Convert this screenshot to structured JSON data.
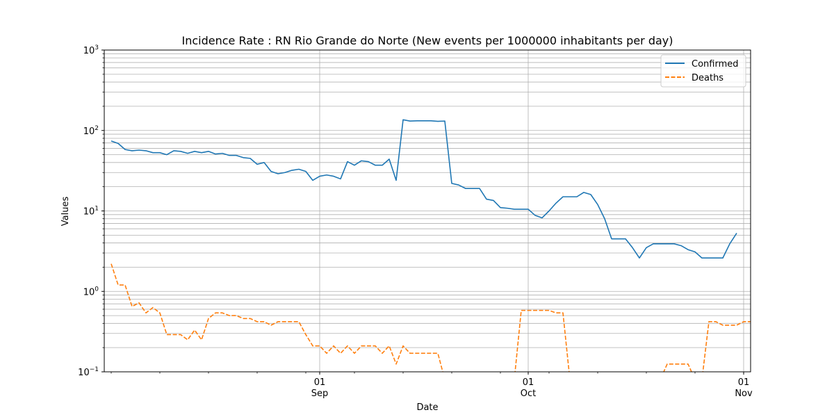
{
  "chart_data": {
    "type": "line",
    "title": "Incidence Rate : RN Rio Grande do Norte (New events per 1000000 inhabitants per day)",
    "xlabel": "Date",
    "ylabel": "Values",
    "yscale": "log",
    "ylim": [
      0.1,
      1000
    ],
    "xlim": [
      "2021-08-01",
      "2021-11-02"
    ],
    "grid": "on",
    "legend_position": "upper right",
    "x_ticks": [
      {
        "date": "2021-09-01",
        "day": "01",
        "month": "Sep"
      },
      {
        "date": "2021-10-01",
        "day": "01",
        "month": "Oct"
      },
      {
        "date": "2021-11-01",
        "day": "01",
        "month": "Nov"
      }
    ],
    "y_ticks": [
      {
        "value": 0.1,
        "base": "10",
        "exp": "−1"
      },
      {
        "value": 1,
        "base": "10",
        "exp": "0"
      },
      {
        "value": 10,
        "base": "10",
        "exp": "1"
      },
      {
        "value": 100,
        "base": "10",
        "exp": "2"
      },
      {
        "value": 1000,
        "base": "10",
        "exp": "3"
      }
    ],
    "start_date": "2021-08-02",
    "series": [
      {
        "name": "Confirmed",
        "color": "#1f77b4",
        "style": "solid",
        "values": [
          74,
          69,
          58,
          56,
          57,
          56,
          53,
          53,
          50,
          56,
          55,
          52,
          55,
          53,
          55,
          51,
          52,
          49,
          49,
          46,
          45,
          38,
          40,
          31,
          29,
          30,
          32,
          33,
          31,
          24,
          27,
          28,
          27,
          25,
          41,
          37,
          42,
          41,
          37,
          37,
          44,
          24,
          136,
          131,
          132,
          132,
          132,
          130,
          131,
          22,
          21,
          19,
          19,
          19,
          14,
          13.5,
          11,
          10.8,
          10.5,
          10.5,
          10.5,
          8.8,
          8.2,
          10,
          12.5,
          15,
          15,
          15,
          17,
          16,
          12,
          8,
          4.5,
          4.5,
          4.5,
          3.5,
          2.6,
          3.5,
          3.9,
          3.9,
          3.9,
          3.9,
          3.7,
          3.3,
          3.1,
          2.6,
          2.6,
          2.6,
          2.6,
          3.9,
          5.3
        ]
      },
      {
        "name": "Deaths",
        "color": "#ff7f0e",
        "style": "dashed",
        "values": [
          2.2,
          1.2,
          1.2,
          0.65,
          0.72,
          0.54,
          0.63,
          0.54,
          0.29,
          0.29,
          0.29,
          0.25,
          0.33,
          0.25,
          0.46,
          0.54,
          0.54,
          0.5,
          0.5,
          0.46,
          0.46,
          0.42,
          0.42,
          0.38,
          0.42,
          0.42,
          0.42,
          0.42,
          0.29,
          0.21,
          0.21,
          0.17,
          0.21,
          0.17,
          0.21,
          0.17,
          0.21,
          0.21,
          0.21,
          0.17,
          0.21,
          0.125,
          0.21,
          0.17,
          0.17,
          0.17,
          0.17,
          0.17,
          0.08,
          0.08,
          0.08,
          0.08,
          0.08,
          0.08,
          0.08,
          0.08,
          0.08,
          0.08,
          0.08,
          0.58,
          0.58,
          0.58,
          0.58,
          0.58,
          0.54,
          0.54,
          0.08,
          0.08,
          0.08,
          0.08,
          0.08,
          0.08,
          0.08,
          0.08,
          0.08,
          0.08,
          0.08,
          0.08,
          0.08,
          0.08,
          0.125,
          0.125,
          0.125,
          0.125,
          0.08,
          0.08,
          0.42,
          0.42,
          0.38,
          0.38,
          0.38,
          0.42,
          0.42
        ]
      }
    ]
  }
}
